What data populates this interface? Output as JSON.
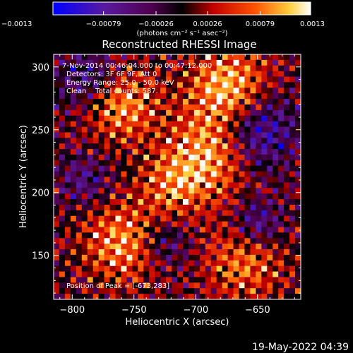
{
  "chart_data": {
    "type": "heatmap",
    "title": "Reconstructed RHESSI Image",
    "xlabel": "Heliocentric X (arcsec)",
    "ylabel": "Heliocentric Y (arcsec)",
    "xlim": [
      -815,
      -615
    ],
    "ylim": [
      115,
      310
    ],
    "x_ticks": [
      -800,
      -750,
      -700,
      -650
    ],
    "x_tick_labels": [
      "−800",
      "−750",
      "−700",
      "−650"
    ],
    "y_ticks": [
      150,
      200,
      250,
      300
    ],
    "y_tick_labels": [
      "150",
      "200",
      "250",
      "300"
    ],
    "colorbar": {
      "range": [
        -0.0013,
        0.0013
      ],
      "ticks": [
        -0.0013,
        -0.00079,
        -0.00026,
        0.00026,
        0.00079,
        0.0013
      ],
      "tick_labels": [
        "−0.0013",
        "−0.00079",
        "−0.00026",
        "0.00026",
        "0.00079",
        "0.0013"
      ],
      "unit_label": "(photons cm⁻² s⁻¹ asec⁻²)",
      "colors": [
        "#0000ff",
        "#5a1aa0",
        "#500050",
        "#000000",
        "#c00000",
        "#ff5000",
        "#ffd040",
        "#ffffff"
      ]
    },
    "annotations": [
      "7-Nov-2014 00:46:04.000 to 00:47:12.000",
      "Detectors: 3F 6F 9F, Att 0",
      "Energy Range: 25.0 - 50.0 keV",
      "Clean    Total counts: 587.",
      "Position of Peak = [-673,283]"
    ],
    "peak": [
      -673,
      283
    ],
    "grid": false
  },
  "footer": {
    "timestamp": "19-May-2022 04:39"
  }
}
